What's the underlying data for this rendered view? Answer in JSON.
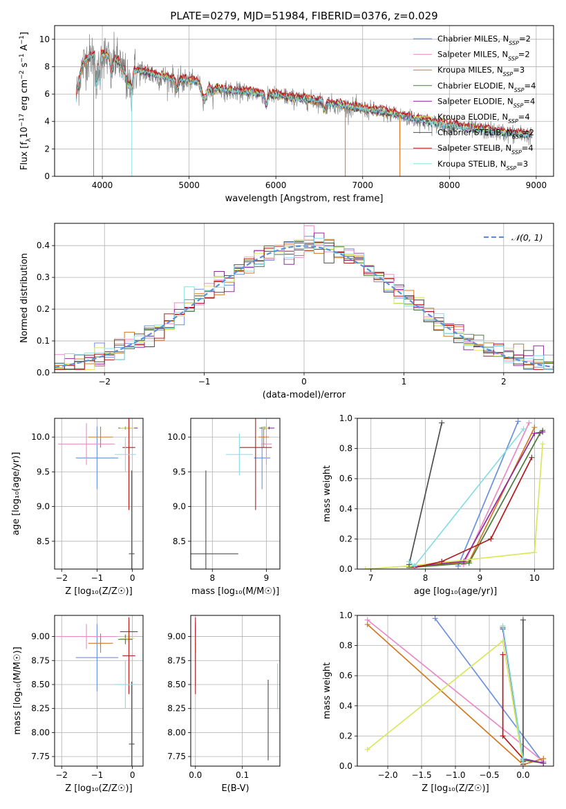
{
  "figure_title": "PLATE=0279, MJD=51984, FIBERID=0376, z=0.029",
  "colors": {
    "Chabrier MILES": "#6a8fdd",
    "Salpeter MILES": "#e88ac6",
    "Kroupa MILES": "#d4781e",
    "Chabrier ELODIE": "#4a7a3a",
    "Salpeter ELODIE": "#8e2a9a",
    "Kroupa ELODIE": "#d8e85a",
    "Chabrier STELIB": "#4d4d4d",
    "Salpeter STELIB": "#b71818",
    "Kroupa STELIB": "#86dde3",
    "data": "#808080",
    "normal": "#5b8fd8"
  },
  "chart_data": [
    {
      "id": "spectrum",
      "type": "line",
      "title": "PLATE=0279, MJD=51984, FIBERID=0376, z=0.029",
      "xlabel": "wavelength [Angstrom, rest frame]",
      "ylabel_parts": [
        "Flux [f",
        "λ",
        "10",
        "−17",
        " erg cm",
        "−2",
        " s",
        "−1",
        " A",
        "−1",
        "]"
      ],
      "xlim": [
        3450,
        9200
      ],
      "ylim": [
        0,
        11
      ],
      "xticks": [
        4000,
        5000,
        6000,
        7000,
        8000,
        9000
      ],
      "yticks": [
        0,
        2,
        4,
        6,
        8,
        10
      ],
      "legend_position": "top-right",
      "legend": [
        {
          "label": "Chabrier MILES, N",
          "sub": "SSP",
          "suffix": "=2",
          "model": "Chabrier MILES"
        },
        {
          "label": "Salpeter MILES, N",
          "sub": "SSP",
          "suffix": "=2",
          "model": "Salpeter MILES"
        },
        {
          "label": "Kroupa MILES, N",
          "sub": "SSP",
          "suffix": "=3",
          "model": "Kroupa MILES"
        },
        {
          "label": "Chabrier ELODIE, N",
          "sub": "SSP",
          "suffix": "=4",
          "model": "Chabrier ELODIE"
        },
        {
          "label": "Salpeter ELODIE, N",
          "sub": "SSP",
          "suffix": "=4",
          "model": "Salpeter ELODIE"
        },
        {
          "label": "Kroupa ELODIE, N",
          "sub": "SSP",
          "suffix": "=4",
          "model": "Kroupa ELODIE"
        },
        {
          "label": "Chabrier STELIB, N",
          "sub": "SSP",
          "suffix": "=2",
          "model": "Chabrier STELIB"
        },
        {
          "label": "Salpeter STELIB, N",
          "sub": "SSP",
          "suffix": "=4",
          "model": "Salpeter STELIB"
        },
        {
          "label": "Kroupa STELIB, N",
          "sub": "SSP",
          "suffix": "=3",
          "model": "Kroupa STELIB"
        }
      ],
      "continuum": [
        [
          3700,
          5.8
        ],
        [
          3750,
          7.6
        ],
        [
          3800,
          8.4
        ],
        [
          3900,
          8.9
        ],
        [
          4000,
          8.9
        ],
        [
          4100,
          8.6
        ],
        [
          4200,
          8.3
        ],
        [
          4300,
          7.9
        ],
        [
          4400,
          7.7
        ],
        [
          4500,
          7.6
        ],
        [
          4700,
          7.2
        ],
        [
          4900,
          7.0
        ],
        [
          5100,
          6.9
        ],
        [
          5300,
          6.4
        ],
        [
          5500,
          6.2
        ],
        [
          5700,
          6.1
        ],
        [
          6000,
          5.9
        ],
        [
          6300,
          5.6
        ],
        [
          6500,
          5.5
        ],
        [
          6700,
          5.2
        ],
        [
          6900,
          5.0
        ],
        [
          7100,
          4.8
        ],
        [
          7300,
          4.6
        ],
        [
          7500,
          4.3
        ],
        [
          7700,
          4.0
        ],
        [
          7900,
          3.8
        ],
        [
          8100,
          3.6
        ],
        [
          8300,
          3.4
        ],
        [
          8500,
          3.3
        ],
        [
          8700,
          3.1
        ],
        [
          8900,
          3.0
        ]
      ],
      "features": [
        {
          "x": 3933,
          "depth": 2.5,
          "width": 15
        },
        {
          "x": 3968,
          "depth": 2.0,
          "width": 12
        },
        {
          "x": 4102,
          "depth": 1.2,
          "width": 18
        },
        {
          "x": 4226,
          "depth": 0.8,
          "width": 12
        },
        {
          "x": 4300,
          "depth": 1.3,
          "width": 40
        },
        {
          "x": 4340,
          "depth": 1.0,
          "width": 15
        },
        {
          "x": 4861,
          "depth": 0.8,
          "width": 20
        },
        {
          "x": 5175,
          "depth": 1.1,
          "width": 40
        },
        {
          "x": 5270,
          "depth": 0.5,
          "width": 20
        },
        {
          "x": 5890,
          "depth": 0.8,
          "width": 20
        },
        {
          "x": 6563,
          "depth": 0.6,
          "width": 20
        }
      ],
      "spikes": [
        {
          "x": 3900,
          "y": 0,
          "model": "Kroupa MILES"
        },
        {
          "x": 4340,
          "y": 0,
          "model": "Kroupa STELIB"
        },
        {
          "x": 6800,
          "y": 0,
          "model": "Kroupa MILES"
        },
        {
          "x": 7430,
          "y": 0,
          "model": "Kroupa MILES"
        }
      ]
    },
    {
      "id": "residuals",
      "type": "bar",
      "xlabel": "(data-model)/error",
      "ylabel": "Normed distribution",
      "xlim": [
        -2.5,
        2.5
      ],
      "ylim": [
        0,
        0.47
      ],
      "xticks": [
        -2,
        -1,
        0,
        1,
        2
      ],
      "yticks": [
        0.0,
        0.1,
        0.2,
        0.3,
        0.4
      ],
      "ytick_labels": [
        "0.0",
        "0.1",
        "0.2",
        "0.3",
        "0.4"
      ],
      "bin_width": 0.1,
      "legend_position": "top-right",
      "legend_label": "𝒩(0, 1)"
    },
    {
      "id": "age-vs-Z",
      "type": "scatter",
      "xlabel": "Z [log₁₀(Z/Z☉)]",
      "ylabel": "age  [log₁₀(age/yr)]",
      "xlim": [
        -2.2,
        0.3
      ],
      "ylim": [
        8.1,
        10.27
      ],
      "xticks": [
        -2,
        -1,
        0
      ],
      "yticks": [
        8.5,
        9.0,
        9.5,
        10.0
      ],
      "ytick_labels": [
        "8.5",
        "9.0",
        "9.5",
        "10.0"
      ],
      "points": [
        {
          "model": "Chabrier MILES",
          "x": -1.0,
          "y": 9.7,
          "xerr": 0.6,
          "yerr": 0.45
        },
        {
          "model": "Salpeter MILES",
          "x": -1.3,
          "y": 9.9,
          "xerr": 0.8,
          "yerr": 0.3
        },
        {
          "model": "Kroupa MILES",
          "x": -0.9,
          "y": 10.0,
          "xerr": 0.35,
          "yerr": 0.15
        },
        {
          "model": "Chabrier ELODIE",
          "x": -0.2,
          "y": 10.13,
          "xerr": 0.2,
          "yerr": 0.02
        },
        {
          "model": "Salpeter ELODIE",
          "x": -0.1,
          "y": 10.13,
          "xerr": 0.25,
          "yerr": 0.02
        },
        {
          "model": "Kroupa ELODIE",
          "x": -0.15,
          "y": 10.13,
          "xerr": 0.2,
          "yerr": 0.02
        },
        {
          "model": "Chabrier STELIB",
          "x": -0.02,
          "y": 8.32,
          "xerr": 0.08,
          "yerr": 1.2
        },
        {
          "model": "Salpeter STELIB",
          "x": -0.1,
          "y": 9.85,
          "xerr": 0.18,
          "yerr": 0.9
        },
        {
          "model": "Kroupa STELIB",
          "x": -0.2,
          "y": 9.75,
          "xerr": 0.3,
          "yerr": 0.25
        }
      ]
    },
    {
      "id": "age-vs-mass",
      "type": "scatter",
      "xlabel": "mass [log₁₀(M/M☉)]",
      "ylabel": "",
      "xlim": [
        7.6,
        9.25
      ],
      "ylim": [
        8.1,
        10.27
      ],
      "xticks": [
        8,
        9
      ],
      "yticks": [
        8.5,
        9.0,
        9.5,
        10.0
      ],
      "ytick_labels": [
        "8.5",
        "9.0",
        "9.5",
        "10.0"
      ],
      "points": [
        {
          "model": "Chabrier MILES",
          "x": 8.92,
          "y": 9.7,
          "xerr": 0.15,
          "yerr": 0.45
        },
        {
          "model": "Salpeter MILES",
          "x": 9.0,
          "y": 9.9,
          "xerr": 0.1,
          "yerr": 0.3
        },
        {
          "model": "Kroupa MILES",
          "x": 8.95,
          "y": 10.0,
          "xerr": 0.1,
          "yerr": 0.15
        },
        {
          "model": "Chabrier ELODIE",
          "x": 8.97,
          "y": 10.13,
          "xerr": 0.1,
          "yerr": 0.02
        },
        {
          "model": "Salpeter ELODIE",
          "x": 9.05,
          "y": 10.13,
          "xerr": 0.1,
          "yerr": 0.02
        },
        {
          "model": "Kroupa ELODIE",
          "x": 8.98,
          "y": 10.13,
          "xerr": 0.05,
          "yerr": 0.02
        },
        {
          "model": "Chabrier STELIB",
          "x": 7.88,
          "y": 8.32,
          "xerr": 0.6,
          "yerr": 1.2
        },
        {
          "model": "Salpeter STELIB",
          "x": 8.8,
          "y": 9.85,
          "xerr": 0.3,
          "yerr": 0.9
        },
        {
          "model": "Kroupa STELIB",
          "x": 8.5,
          "y": 9.75,
          "xerr": 0.25,
          "yerr": 0.3
        }
      ]
    },
    {
      "id": "weight-vs-age",
      "type": "line",
      "xlabel": "age  [log₁₀(age/yr)]",
      "ylabel": "mass weight",
      "xlim": [
        6.75,
        10.35
      ],
      "ylim": [
        0,
        1
      ],
      "xticks": [
        7,
        8,
        9,
        10
      ],
      "yticks": [
        0.0,
        0.2,
        0.4,
        0.6,
        0.8,
        1.0
      ],
      "ytick_labels": [
        "0.0",
        "0.2",
        "0.4",
        "0.6",
        "0.8",
        "1.0"
      ],
      "series": [
        {
          "model": "Chabrier MILES",
          "x": [
            8.6,
            9.7
          ],
          "y": [
            0.02,
            0.98
          ]
        },
        {
          "model": "Salpeter MILES",
          "x": [
            8.7,
            9.9
          ],
          "y": [
            0.03,
            0.97
          ]
        },
        {
          "model": "Kroupa MILES",
          "x": [
            7.7,
            8.8,
            10.0
          ],
          "y": [
            0.01,
            0.05,
            0.94
          ]
        },
        {
          "model": "Chabrier ELODIE",
          "x": [
            7.7,
            8.8,
            10.1,
            10.15
          ],
          "y": [
            0.01,
            0.04,
            0.9,
            0.92
          ]
        },
        {
          "model": "Salpeter ELODIE",
          "x": [
            7.8,
            8.7,
            10.0,
            10.15
          ],
          "y": [
            0.02,
            0.05,
            0.9,
            0.91
          ]
        },
        {
          "model": "Kroupa ELODIE",
          "x": [
            6.9,
            7.7,
            10.0,
            10.15
          ],
          "y": [
            0.0,
            0.02,
            0.11,
            0.83
          ]
        },
        {
          "model": "Chabrier STELIB",
          "x": [
            7.7,
            8.3
          ],
          "y": [
            0.03,
            0.97
          ]
        },
        {
          "model": "Salpeter STELIB",
          "x": [
            7.8,
            8.3,
            9.2,
            9.95
          ],
          "y": [
            0.01,
            0.05,
            0.2,
            0.74
          ]
        },
        {
          "model": "Kroupa STELIB",
          "x": [
            7.7,
            7.8,
            9.8
          ],
          "y": [
            0.05,
            0.02,
            0.93
          ]
        }
      ]
    },
    {
      "id": "mass-vs-Z",
      "type": "scatter",
      "xlabel": "Z [log₁₀(Z/Z☉)]",
      "ylabel": "mass [log₁₀(M/M☉)]",
      "xlim": [
        -2.2,
        0.3
      ],
      "ylim": [
        7.65,
        9.22
      ],
      "xticks": [
        -2,
        -1,
        0
      ],
      "yticks": [
        7.75,
        8.0,
        8.25,
        8.5,
        8.75,
        9.0
      ],
      "ytick_labels": [
        "7.75",
        "8.00",
        "8.25",
        "8.50",
        "8.75",
        "9.00"
      ],
      "points": [
        {
          "model": "Chabrier MILES",
          "x": -1.0,
          "y": 8.78,
          "xerr": 0.6,
          "yerr": 0.35
        },
        {
          "model": "Salpeter MILES",
          "x": -1.3,
          "y": 9.0,
          "xerr": 0.85,
          "yerr": 0.13
        },
        {
          "model": "Kroupa MILES",
          "x": -0.9,
          "y": 8.93,
          "xerr": 0.35,
          "yerr": 0.1
        },
        {
          "model": "Chabrier ELODIE",
          "x": -0.2,
          "y": 8.97,
          "xerr": 0.2,
          "yerr": 0.05
        },
        {
          "model": "Salpeter ELODIE",
          "x": -0.1,
          "y": 9.05,
          "xerr": 0.25,
          "yerr": 0.1
        },
        {
          "model": "Kroupa ELODIE",
          "x": -0.15,
          "y": 8.98,
          "xerr": 0.2,
          "yerr": 0.04
        },
        {
          "model": "Chabrier STELIB",
          "x": -0.02,
          "y": 7.88,
          "xerr": 0.08,
          "yerr": 0.65
        },
        {
          "model": "Salpeter STELIB",
          "x": -0.1,
          "y": 8.8,
          "xerr": 0.18,
          "yerr": 0.4
        },
        {
          "model": "Kroupa STELIB",
          "x": -0.2,
          "y": 8.5,
          "xerr": 0.3,
          "yerr": 0.25
        }
      ]
    },
    {
      "id": "mass-vs-ebv",
      "type": "scatter",
      "xlabel": "E(B-V)",
      "ylabel": "",
      "xlim": [
        -0.01,
        0.18
      ],
      "ylim": [
        7.65,
        9.22
      ],
      "xticks": [
        0.0,
        0.1
      ],
      "xtick_labels": [
        "0.0",
        "0.1"
      ],
      "yticks": [
        7.75,
        8.0,
        8.25,
        8.5,
        8.75,
        9.0
      ],
      "ytick_labels": [
        "7.75",
        "8.00",
        "8.25",
        "8.50",
        "8.75",
        "9.00"
      ],
      "points": [
        {
          "model": "Chabrier MILES",
          "x": 0.0,
          "y": 8.78,
          "xerr": 0.0,
          "yerr": 0.3
        },
        {
          "model": "Salpeter MILES",
          "x": 0.0,
          "y": 9.0,
          "xerr": 0.0,
          "yerr": 0.1
        },
        {
          "model": "Kroupa MILES",
          "x": 0.0,
          "y": 8.93,
          "xerr": 0.0,
          "yerr": 0.1
        },
        {
          "model": "Chabrier ELODIE",
          "x": 0.0,
          "y": 8.97,
          "xerr": 0.0,
          "yerr": 0.05
        },
        {
          "model": "Salpeter ELODIE",
          "x": 0.0,
          "y": 9.05,
          "xerr": 0.0,
          "yerr": 0.1
        },
        {
          "model": "Kroupa ELODIE",
          "x": 0.0,
          "y": 8.98,
          "xerr": 0.0,
          "yerr": 0.05
        },
        {
          "model": "Chabrier STELIB",
          "x": 0.155,
          "y": 8.13,
          "xerr": 0.0,
          "yerr": 0.42
        },
        {
          "model": "Salpeter STELIB",
          "x": 0.0,
          "y": 8.8,
          "xerr": 0.0,
          "yerr": 0.4
        },
        {
          "model": "Kroupa STELIB",
          "x": 0.175,
          "y": 8.48,
          "xerr": 0.0,
          "yerr": 0.24
        }
      ]
    },
    {
      "id": "weight-vs-Z",
      "type": "line",
      "xlabel": "Z [log₁₀(Z/Z☉)]",
      "ylabel": "mass weight",
      "xlim": [
        -2.45,
        0.45
      ],
      "ylim": [
        0,
        1
      ],
      "xticks": [
        -2.0,
        -1.5,
        -1.0,
        -0.5,
        0.0
      ],
      "xtick_labels": [
        "−2.0",
        "−1.5",
        "−1.0",
        "−0.5",
        "0.0"
      ],
      "yticks": [
        0.0,
        0.2,
        0.4,
        0.6,
        0.8,
        1.0
      ],
      "ytick_labels": [
        "0.0",
        "0.2",
        "0.4",
        "0.6",
        "0.8",
        "1.0"
      ],
      "series": [
        {
          "model": "Chabrier MILES",
          "x": [
            -1.3,
            0.3
          ],
          "y": [
            0.98,
            0.02
          ]
        },
        {
          "model": "Salpeter MILES",
          "x": [
            -2.3,
            0.3
          ],
          "y": [
            0.97,
            0.03
          ]
        },
        {
          "model": "Kroupa MILES",
          "x": [
            -2.3,
            0.0,
            0.3
          ],
          "y": [
            0.94,
            0.01,
            0.05
          ]
        },
        {
          "model": "Chabrier ELODIE",
          "x": [
            -0.3,
            0.0,
            0.3
          ],
          "y": [
            0.92,
            0.04,
            0.02
          ]
        },
        {
          "model": "Salpeter ELODIE",
          "x": [
            -0.3,
            0.0,
            0.3
          ],
          "y": [
            0.91,
            0.05,
            0.02
          ]
        },
        {
          "model": "Kroupa ELODIE",
          "x": [
            -2.3,
            -0.3,
            0.0
          ],
          "y": [
            0.11,
            0.83,
            0.02
          ]
        },
        {
          "model": "Chabrier STELIB",
          "x": [
            0.0,
            0.0
          ],
          "y": [
            0.97,
            0.03
          ]
        },
        {
          "model": "Salpeter STELIB",
          "x": [
            -0.3,
            -0.3,
            0.0,
            0.0
          ],
          "y": [
            0.74,
            0.2,
            0.05,
            0.01
          ]
        },
        {
          "model": "Kroupa STELIB",
          "x": [
            -0.3,
            0.0,
            0.0
          ],
          "y": [
            0.93,
            0.05,
            0.02
          ]
        }
      ]
    }
  ]
}
